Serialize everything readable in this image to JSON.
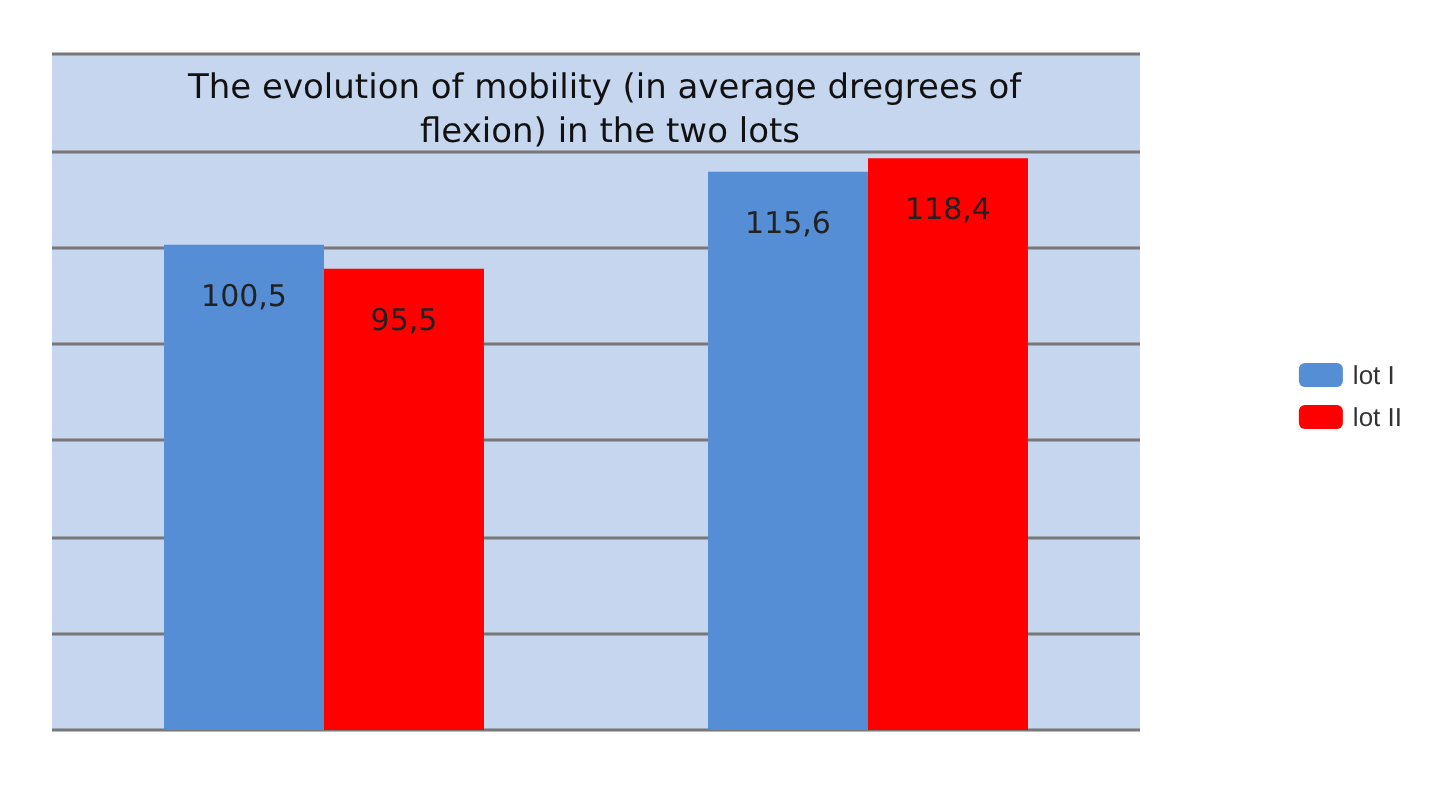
{
  "chart_data": {
    "type": "bar",
    "title": "The evolution of mobility (in average dregrees of flexion) in the two lots",
    "categories": [
      null,
      null
    ],
    "series": [
      {
        "name": "lot I",
        "color": "#558ed5",
        "values": [
          100.5,
          115.6
        ],
        "value_labels": [
          "100,5",
          "115,6"
        ]
      },
      {
        "name": "lot II",
        "color": "#ff0000",
        "values": [
          95.5,
          118.4
        ],
        "value_labels": [
          "95,5",
          "118,4"
        ]
      }
    ],
    "ylim": [
      0,
      140
    ],
    "yticks": [
      0,
      20,
      40,
      60,
      80,
      100,
      120,
      140
    ],
    "tick_labels": false,
    "grid": "y",
    "legend": "right"
  }
}
